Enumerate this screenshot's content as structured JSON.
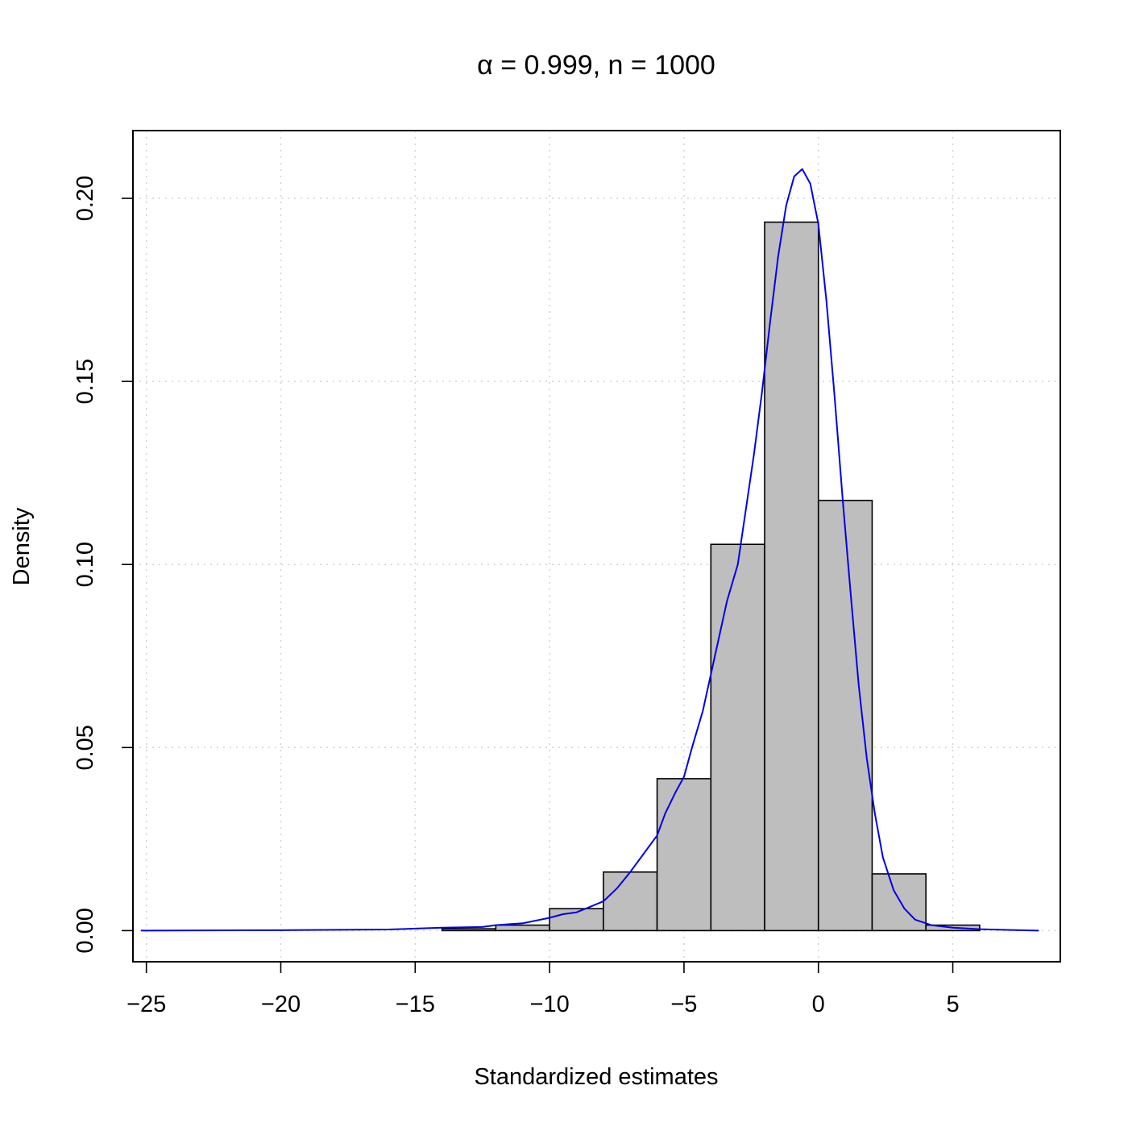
{
  "chart_data": {
    "type": "bar",
    "title": "α = 0.999, n = 1000",
    "xlabel": "Standardized estimates",
    "ylabel": "Density",
    "xlim": [
      -25.5,
      9
    ],
    "ylim": [
      -0.0085,
      0.2185
    ],
    "xticks": [
      -25,
      -20,
      -15,
      -10,
      -5,
      0,
      5
    ],
    "xtick_labels": [
      "−25",
      "−20",
      "−15",
      "−10",
      "−5",
      "0",
      "5"
    ],
    "yticks": [
      0.0,
      0.05,
      0.1,
      0.15,
      0.2
    ],
    "ytick_labels": [
      "0.00",
      "0.05",
      "0.10",
      "0.15",
      "0.20"
    ],
    "grid": true,
    "bars": [
      {
        "x0": -14,
        "x1": -12,
        "value": 0.0005
      },
      {
        "x0": -12,
        "x1": -10,
        "value": 0.0015
      },
      {
        "x0": -10,
        "x1": -8,
        "value": 0.006
      },
      {
        "x0": -8,
        "x1": -6,
        "value": 0.016
      },
      {
        "x0": -6,
        "x1": -4,
        "value": 0.0415
      },
      {
        "x0": -4,
        "x1": -2,
        "value": 0.1055
      },
      {
        "x0": -2,
        "x1": 0,
        "value": 0.1935
      },
      {
        "x0": 0,
        "x1": 2,
        "value": 0.1175
      },
      {
        "x0": 2,
        "x1": 4,
        "value": 0.0155
      },
      {
        "x0": 4,
        "x1": 6,
        "value": 0.0015
      }
    ],
    "series": [
      {
        "type": "line",
        "points": [
          [
            -25.2,
            0.0
          ],
          [
            -20,
            0.0001
          ],
          [
            -16,
            0.0003
          ],
          [
            -14,
            0.0008
          ],
          [
            -12.5,
            0.001
          ],
          [
            -12,
            0.0015
          ],
          [
            -11,
            0.002
          ],
          [
            -10,
            0.0035
          ],
          [
            -9.5,
            0.0045
          ],
          [
            -9,
            0.005
          ],
          [
            -8.5,
            0.0065
          ],
          [
            -8,
            0.008
          ],
          [
            -7.5,
            0.0115
          ],
          [
            -7,
            0.016
          ],
          [
            -6.5,
            0.021
          ],
          [
            -6,
            0.026
          ],
          [
            -5.7,
            0.032
          ],
          [
            -5.3,
            0.038
          ],
          [
            -5,
            0.042
          ],
          [
            -4.7,
            0.05
          ],
          [
            -4.3,
            0.06
          ],
          [
            -4,
            0.07
          ],
          [
            -3.7,
            0.08
          ],
          [
            -3.4,
            0.09
          ],
          [
            -3,
            0.1
          ],
          [
            -2.7,
            0.115
          ],
          [
            -2.4,
            0.13
          ],
          [
            -2.1,
            0.147
          ],
          [
            -1.8,
            0.166
          ],
          [
            -1.5,
            0.184
          ],
          [
            -1.2,
            0.198
          ],
          [
            -0.9,
            0.206
          ],
          [
            -0.6,
            0.208
          ],
          [
            -0.3,
            0.204
          ],
          [
            0,
            0.193
          ],
          [
            0.3,
            0.172
          ],
          [
            0.6,
            0.146
          ],
          [
            0.9,
            0.118
          ],
          [
            1.2,
            0.092
          ],
          [
            1.5,
            0.067
          ],
          [
            1.8,
            0.047
          ],
          [
            2.1,
            0.032
          ],
          [
            2.4,
            0.02
          ],
          [
            2.8,
            0.011
          ],
          [
            3.2,
            0.006
          ],
          [
            3.6,
            0.003
          ],
          [
            4.2,
            0.0015
          ],
          [
            5,
            0.0008
          ],
          [
            6,
            0.0004
          ],
          [
            7,
            0.0002
          ],
          [
            8.2,
            0.0
          ]
        ]
      }
    ]
  },
  "colors": {
    "bar_fill": "#bebebe",
    "bar_stroke": "#000000",
    "density_line": "#0000ee",
    "grid": "#d3d3d3",
    "axis": "#000000"
  }
}
